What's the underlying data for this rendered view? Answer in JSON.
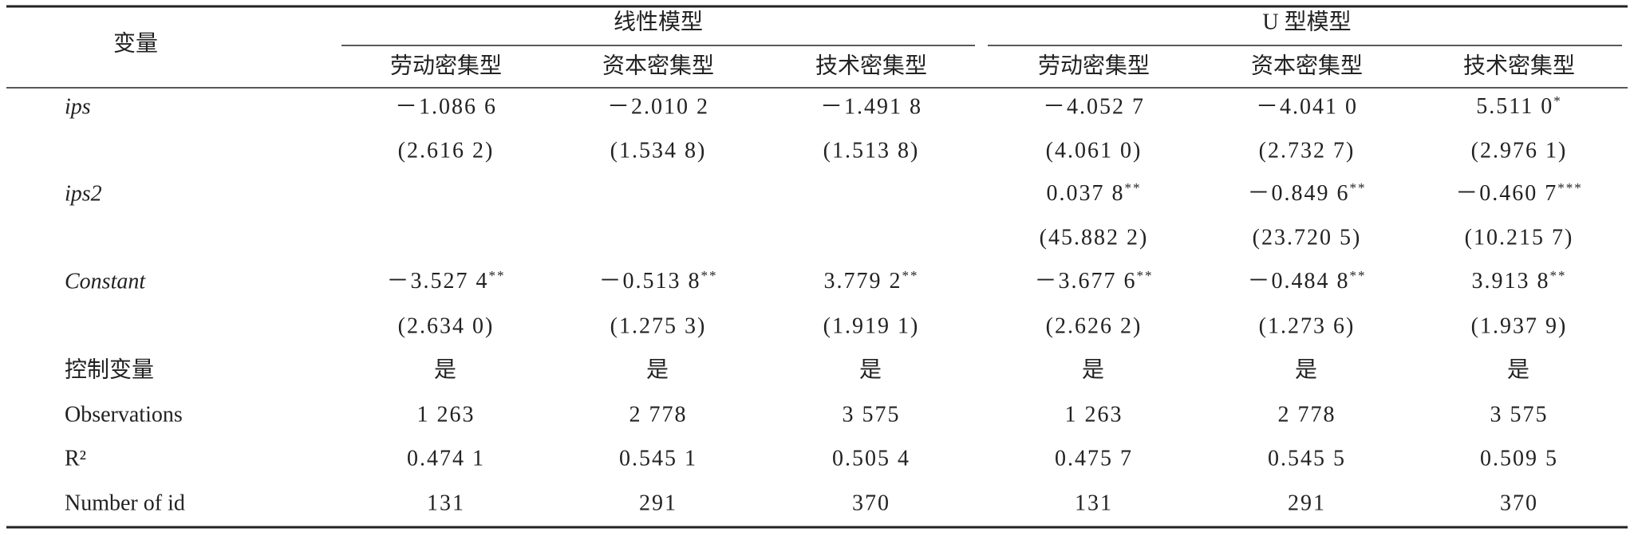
{
  "table": {
    "stub_header": "变量",
    "groups": [
      "线性模型",
      "U 型模型"
    ],
    "columns": [
      "劳动密集型",
      "资本密集型",
      "技术密集型",
      "劳动密集型",
      "资本密集型",
      "技术密集型"
    ],
    "rows": [
      {
        "label": "ips",
        "italic": true,
        "cells": [
          "－1.086 6",
          "－2.010 2",
          "－1.491 8",
          "－4.052 7",
          "－4.041 0",
          {
            "text": "5.511 0",
            "sig": "*"
          }
        ]
      },
      {
        "cells": [
          "(2.616 2)",
          "(1.534 8)",
          "(1.513 8)",
          "(4.061 0)",
          "(2.732 7)",
          "(2.976 1)"
        ]
      },
      {
        "label": "ips2",
        "italic": true,
        "cells": [
          null,
          null,
          null,
          {
            "text": "0.037 8",
            "sig": "**"
          },
          {
            "text": "－0.849 6",
            "sig": "**"
          },
          {
            "text": "－0.460 7",
            "sig": "***"
          }
        ]
      },
      {
        "cells": [
          null,
          null,
          null,
          "(45.882 2)",
          "(23.720 5)",
          "(10.215 7)"
        ]
      },
      {
        "label": "Constant",
        "italic": true,
        "cells": [
          {
            "text": "－3.527 4",
            "sig": "**"
          },
          {
            "text": "－0.513 8",
            "sig": "**"
          },
          {
            "text": "3.779 2",
            "sig": "**"
          },
          {
            "text": "－3.677 6",
            "sig": "**"
          },
          {
            "text": "－0.484 8",
            "sig": "**"
          },
          {
            "text": "3.913 8",
            "sig": "**"
          }
        ]
      },
      {
        "cells": [
          "(2.634 0)",
          "(1.275 3)",
          "(1.919 1)",
          "(2.626 2)",
          "(1.273 6)",
          "(1.937 9)"
        ]
      },
      {
        "label": "控制变量",
        "cells": [
          "是",
          "是",
          "是",
          "是",
          "是",
          "是"
        ]
      },
      {
        "label": "Observations",
        "cells": [
          "1 263",
          "2 778",
          "3 575",
          "1 263",
          "2 778",
          "3 575"
        ]
      },
      {
        "label": "R²",
        "cells": [
          "0.474 1",
          "0.545 1",
          "0.505 4",
          "0.475 7",
          "0.545 5",
          "0.509 5"
        ]
      },
      {
        "label": "Number of id",
        "cells": [
          "131",
          "291",
          "370",
          "131",
          "291",
          "370"
        ]
      }
    ]
  }
}
